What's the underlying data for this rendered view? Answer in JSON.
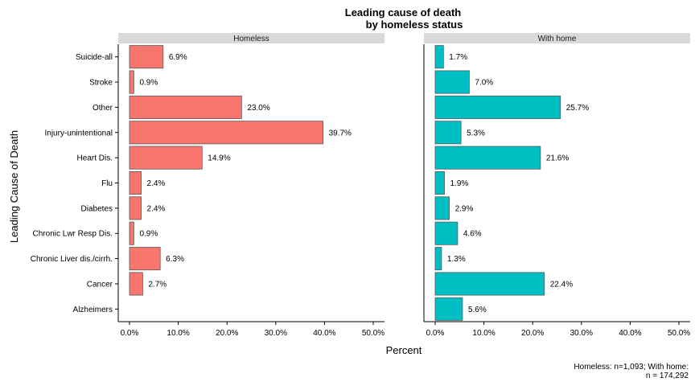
{
  "chart_data": {
    "type": "bar",
    "orientation": "horizontal",
    "title_line1": "Leading cause of death",
    "title_line2": "by homeless status",
    "xlabel": "Percent",
    "ylabel": "Leading Cause of Death",
    "xlim": [
      0,
      50
    ],
    "xticks": [
      "0.0%",
      "10.0%",
      "20.0%",
      "30.0%",
      "40.0%",
      "50.0%"
    ],
    "categories": [
      "Suicide-all",
      "Stroke",
      "Other",
      "Injury-unintentional",
      "Heart Dis.",
      "Flu",
      "Diabetes",
      "Chronic Lwr Resp Dis.",
      "Chronic Liver dis./cirrh.",
      "Cancer",
      "Alzheimers"
    ],
    "panels": [
      {
        "name": "Homeless",
        "color": "#F8766D",
        "values": [
          6.9,
          0.9,
          23.0,
          39.7,
          14.9,
          2.4,
          2.4,
          0.9,
          6.3,
          2.7,
          null
        ],
        "labels": [
          "6.9%",
          "0.9%",
          "23.0%",
          "39.7%",
          "14.9%",
          "2.4%",
          "2.4%",
          "0.9%",
          "6.3%",
          "2.7%",
          null
        ]
      },
      {
        "name": "With home",
        "color": "#00BFC4",
        "values": [
          1.7,
          7.0,
          25.7,
          5.3,
          21.6,
          1.9,
          2.9,
          4.6,
          1.3,
          22.4,
          5.6
        ],
        "labels": [
          "1.7%",
          "7.0%",
          "25.7%",
          "5.3%",
          "21.6%",
          "1.9%",
          "2.9%",
          "4.6%",
          "1.3%",
          "22.4%",
          "5.6%"
        ]
      }
    ],
    "caption_line1": "Homeless: n=1,093; With home:",
    "caption_line2": "n = 174,292",
    "strip_color": "#D9D9D9",
    "bar_outline": "#595959"
  }
}
